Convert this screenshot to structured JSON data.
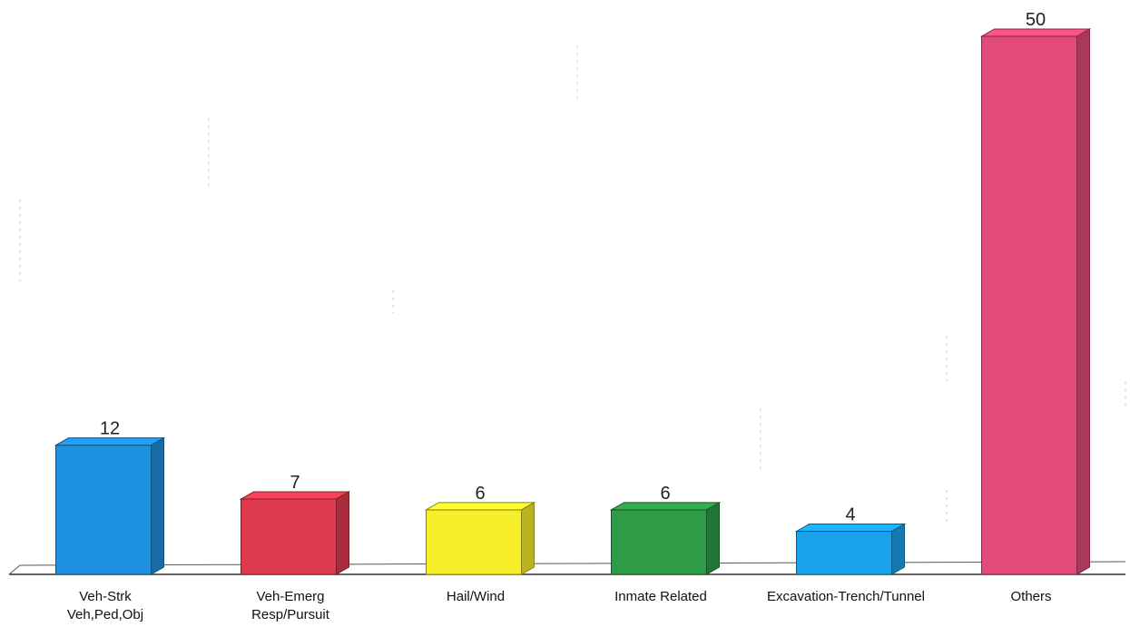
{
  "chart_data": {
    "type": "bar",
    "categories": [
      [
        "Veh-Strk",
        "Veh,Ped,Obj"
      ],
      [
        "Veh-Emerg",
        "Resp/Pursuit"
      ],
      [
        "Hail/Wind"
      ],
      [
        "Inmate Related"
      ],
      [
        "Excavation-Trench/Tunnel"
      ],
      [
        "Others"
      ]
    ],
    "values": [
      12,
      7,
      6,
      6,
      4,
      50
    ],
    "data_labels": [
      "12",
      "7",
      "6",
      "6",
      "4",
      "50"
    ],
    "colors": [
      "#1e90e0",
      "#e03a4e",
      "#f7ef2a",
      "#2e9c47",
      "#1aa2ec",
      "#e24a78"
    ],
    "ylim": [
      0,
      50
    ],
    "grid": false,
    "legend": "none",
    "style": "3d-bars"
  }
}
